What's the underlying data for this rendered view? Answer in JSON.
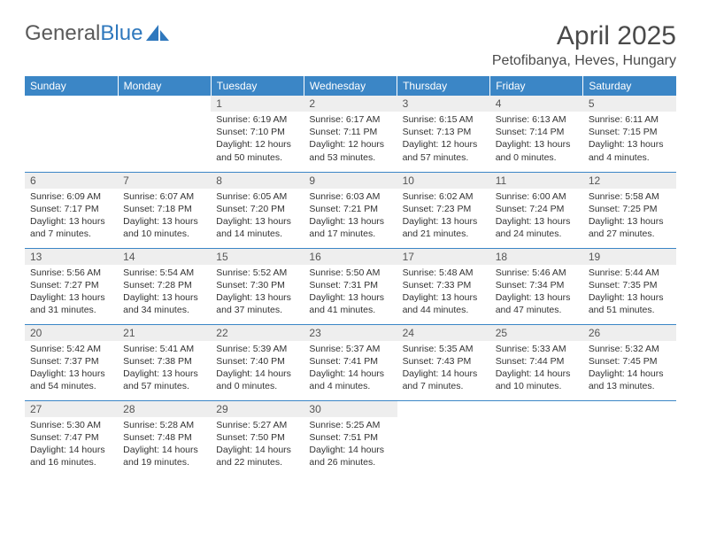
{
  "logo": {
    "text_general": "General",
    "text_blue": "Blue"
  },
  "title": "April 2025",
  "location": "Petofibanya, Heves, Hungary",
  "colors": {
    "header_bg": "#3b86c6",
    "header_fg": "#ffffff",
    "daynum_bg": "#eeeeee",
    "row_border": "#3b86c6",
    "text": "#333333"
  },
  "weekday_headers": [
    "Sunday",
    "Monday",
    "Tuesday",
    "Wednesday",
    "Thursday",
    "Friday",
    "Saturday"
  ],
  "weeks": [
    [
      null,
      null,
      {
        "n": "1",
        "sr": "Sunrise: 6:19 AM",
        "ss": "Sunset: 7:10 PM",
        "dl": "Daylight: 12 hours and 50 minutes."
      },
      {
        "n": "2",
        "sr": "Sunrise: 6:17 AM",
        "ss": "Sunset: 7:11 PM",
        "dl": "Daylight: 12 hours and 53 minutes."
      },
      {
        "n": "3",
        "sr": "Sunrise: 6:15 AM",
        "ss": "Sunset: 7:13 PM",
        "dl": "Daylight: 12 hours and 57 minutes."
      },
      {
        "n": "4",
        "sr": "Sunrise: 6:13 AM",
        "ss": "Sunset: 7:14 PM",
        "dl": "Daylight: 13 hours and 0 minutes."
      },
      {
        "n": "5",
        "sr": "Sunrise: 6:11 AM",
        "ss": "Sunset: 7:15 PM",
        "dl": "Daylight: 13 hours and 4 minutes."
      }
    ],
    [
      {
        "n": "6",
        "sr": "Sunrise: 6:09 AM",
        "ss": "Sunset: 7:17 PM",
        "dl": "Daylight: 13 hours and 7 minutes."
      },
      {
        "n": "7",
        "sr": "Sunrise: 6:07 AM",
        "ss": "Sunset: 7:18 PM",
        "dl": "Daylight: 13 hours and 10 minutes."
      },
      {
        "n": "8",
        "sr": "Sunrise: 6:05 AM",
        "ss": "Sunset: 7:20 PM",
        "dl": "Daylight: 13 hours and 14 minutes."
      },
      {
        "n": "9",
        "sr": "Sunrise: 6:03 AM",
        "ss": "Sunset: 7:21 PM",
        "dl": "Daylight: 13 hours and 17 minutes."
      },
      {
        "n": "10",
        "sr": "Sunrise: 6:02 AM",
        "ss": "Sunset: 7:23 PM",
        "dl": "Daylight: 13 hours and 21 minutes."
      },
      {
        "n": "11",
        "sr": "Sunrise: 6:00 AM",
        "ss": "Sunset: 7:24 PM",
        "dl": "Daylight: 13 hours and 24 minutes."
      },
      {
        "n": "12",
        "sr": "Sunrise: 5:58 AM",
        "ss": "Sunset: 7:25 PM",
        "dl": "Daylight: 13 hours and 27 minutes."
      }
    ],
    [
      {
        "n": "13",
        "sr": "Sunrise: 5:56 AM",
        "ss": "Sunset: 7:27 PM",
        "dl": "Daylight: 13 hours and 31 minutes."
      },
      {
        "n": "14",
        "sr": "Sunrise: 5:54 AM",
        "ss": "Sunset: 7:28 PM",
        "dl": "Daylight: 13 hours and 34 minutes."
      },
      {
        "n": "15",
        "sr": "Sunrise: 5:52 AM",
        "ss": "Sunset: 7:30 PM",
        "dl": "Daylight: 13 hours and 37 minutes."
      },
      {
        "n": "16",
        "sr": "Sunrise: 5:50 AM",
        "ss": "Sunset: 7:31 PM",
        "dl": "Daylight: 13 hours and 41 minutes."
      },
      {
        "n": "17",
        "sr": "Sunrise: 5:48 AM",
        "ss": "Sunset: 7:33 PM",
        "dl": "Daylight: 13 hours and 44 minutes."
      },
      {
        "n": "18",
        "sr": "Sunrise: 5:46 AM",
        "ss": "Sunset: 7:34 PM",
        "dl": "Daylight: 13 hours and 47 minutes."
      },
      {
        "n": "19",
        "sr": "Sunrise: 5:44 AM",
        "ss": "Sunset: 7:35 PM",
        "dl": "Daylight: 13 hours and 51 minutes."
      }
    ],
    [
      {
        "n": "20",
        "sr": "Sunrise: 5:42 AM",
        "ss": "Sunset: 7:37 PM",
        "dl": "Daylight: 13 hours and 54 minutes."
      },
      {
        "n": "21",
        "sr": "Sunrise: 5:41 AM",
        "ss": "Sunset: 7:38 PM",
        "dl": "Daylight: 13 hours and 57 minutes."
      },
      {
        "n": "22",
        "sr": "Sunrise: 5:39 AM",
        "ss": "Sunset: 7:40 PM",
        "dl": "Daylight: 14 hours and 0 minutes."
      },
      {
        "n": "23",
        "sr": "Sunrise: 5:37 AM",
        "ss": "Sunset: 7:41 PM",
        "dl": "Daylight: 14 hours and 4 minutes."
      },
      {
        "n": "24",
        "sr": "Sunrise: 5:35 AM",
        "ss": "Sunset: 7:43 PM",
        "dl": "Daylight: 14 hours and 7 minutes."
      },
      {
        "n": "25",
        "sr": "Sunrise: 5:33 AM",
        "ss": "Sunset: 7:44 PM",
        "dl": "Daylight: 14 hours and 10 minutes."
      },
      {
        "n": "26",
        "sr": "Sunrise: 5:32 AM",
        "ss": "Sunset: 7:45 PM",
        "dl": "Daylight: 14 hours and 13 minutes."
      }
    ],
    [
      {
        "n": "27",
        "sr": "Sunrise: 5:30 AM",
        "ss": "Sunset: 7:47 PM",
        "dl": "Daylight: 14 hours and 16 minutes."
      },
      {
        "n": "28",
        "sr": "Sunrise: 5:28 AM",
        "ss": "Sunset: 7:48 PM",
        "dl": "Daylight: 14 hours and 19 minutes."
      },
      {
        "n": "29",
        "sr": "Sunrise: 5:27 AM",
        "ss": "Sunset: 7:50 PM",
        "dl": "Daylight: 14 hours and 22 minutes."
      },
      {
        "n": "30",
        "sr": "Sunrise: 5:25 AM",
        "ss": "Sunset: 7:51 PM",
        "dl": "Daylight: 14 hours and 26 minutes."
      },
      null,
      null,
      null
    ]
  ]
}
